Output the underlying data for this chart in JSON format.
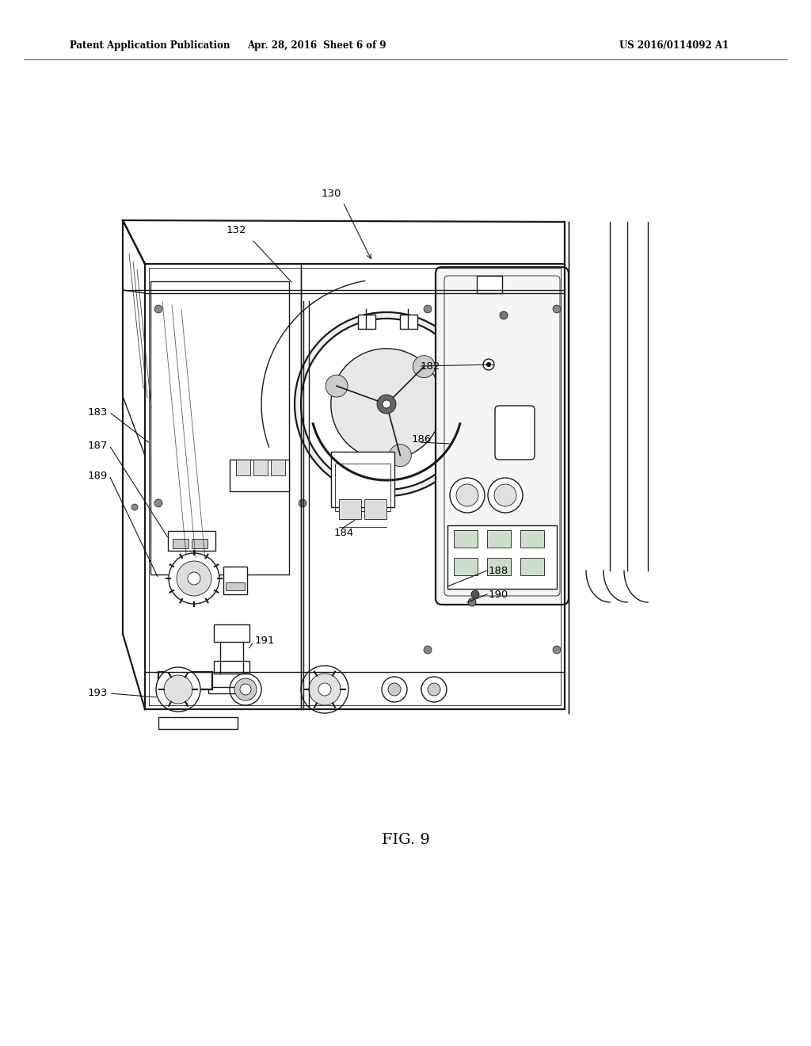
{
  "title_left": "Patent Application Publication",
  "title_center": "Apr. 28, 2016  Sheet 6 of 9",
  "title_right": "US 2016/0114092 A1",
  "fig_label": "FIG. 9",
  "bg_color": "#ffffff",
  "line_color": "#1a1a1a",
  "gray_color": "#888888",
  "lw_main": 1.0,
  "lw_thick": 1.6,
  "lw_thin": 0.6
}
